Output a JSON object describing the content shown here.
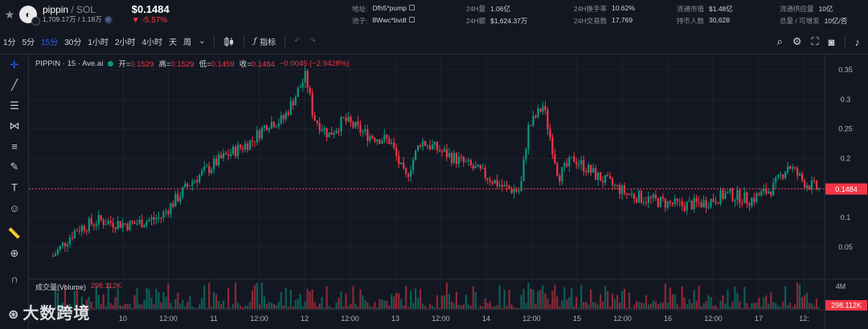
{
  "header": {
    "token_name": "pippin",
    "pair": " / SOL",
    "token_meta": "1,709.17万 / 1.18万",
    "price": "$0.1484",
    "change": "▼ -5.57%",
    "stats": [
      [
        {
          "k": "地址:",
          "v": "Dfh5*pump",
          "copy": true
        },
        {
          "k": "池子:",
          "v": "8Wwc*bvdt",
          "copy": true
        }
      ],
      [
        {
          "k": "24H量",
          "v": "1.06亿"
        },
        {
          "k": "24H额",
          "v": "$1,624.37万"
        }
      ],
      [
        {
          "k": "24H换手率",
          "v": "10.62%"
        },
        {
          "k": "24H交易数",
          "v": "17,769"
        }
      ],
      [
        {
          "k": "流通市值",
          "v": "$1.48亿"
        },
        {
          "k": "持币人数",
          "v": "30,628"
        }
      ],
      [
        {
          "k": "流通供应量",
          "v": "10亿"
        },
        {
          "k": "总量 / 可增发",
          "v": "10亿/否"
        }
      ]
    ]
  },
  "toolbar": {
    "timeframes": [
      "1分",
      "5分",
      "15分",
      "30分",
      "1小时",
      "2小时",
      "4小时",
      "天",
      "周"
    ],
    "active_timeframe": "15分",
    "indicators_label": "指标"
  },
  "legend": {
    "symbol": "PIPPIN · 15 · Ave.ai",
    "open_label": "开=",
    "open": "0.1529",
    "high_label": "高=",
    "high": "0.1529",
    "low_label": "低=",
    "low": "0.1459",
    "close_label": "收=",
    "close": "0.1484",
    "change": "−0.0045 (−2.9428%)"
  },
  "volume_legend": {
    "label": "成交量(Volume)",
    "value": "298.112K"
  },
  "watermark": "大数跨境",
  "colors": {
    "up": "#089981",
    "down": "#f23645",
    "accent": "#2962ff",
    "bg": "#131722"
  },
  "chart_data": {
    "type": "candlestick",
    "y_ticks": [
      "0.35",
      "0.3",
      "0.25",
      "0.2",
      "0.15",
      "0.1",
      "0.05"
    ],
    "y_tick_values": [
      0.35,
      0.3,
      0.25,
      0.2,
      0.15,
      0.1,
      0.05
    ],
    "ylim": [
      0.015,
      0.36
    ],
    "x_ticks": [
      "10",
      "12:00",
      "11",
      "12:00",
      "12",
      "12:00",
      "13",
      "12:00",
      "14",
      "12:00",
      "15",
      "12:00",
      "16",
      "12:00",
      "17",
      "12:"
    ],
    "price_label": "0.1484",
    "volume_axis_label": "4M",
    "volume_label": "298.112K",
    "price_path": [
      [
        0,
        0.035
      ],
      [
        3,
        0.08
      ],
      [
        6,
        0.095
      ],
      [
        10,
        0.088
      ],
      [
        14,
        0.1
      ],
      [
        18,
        0.16
      ],
      [
        22,
        0.2
      ],
      [
        26,
        0.23
      ],
      [
        28,
        0.26
      ],
      [
        30,
        0.265
      ],
      [
        33,
        0.34
      ],
      [
        34,
        0.27
      ],
      [
        36,
        0.24
      ],
      [
        38,
        0.265
      ],
      [
        41,
        0.24
      ],
      [
        44,
        0.23
      ],
      [
        46,
        0.165
      ],
      [
        48,
        0.23
      ],
      [
        51,
        0.21
      ],
      [
        54,
        0.19
      ],
      [
        56,
        0.175
      ],
      [
        59,
        0.15
      ],
      [
        61,
        0.145
      ],
      [
        62,
        0.25
      ],
      [
        64,
        0.29
      ],
      [
        66,
        0.17
      ],
      [
        68,
        0.2
      ],
      [
        71,
        0.17
      ],
      [
        75,
        0.14
      ],
      [
        78,
        0.13
      ],
      [
        82,
        0.12
      ],
      [
        85,
        0.125
      ],
      [
        88,
        0.14
      ],
      [
        91,
        0.13
      ],
      [
        94,
        0.15
      ],
      [
        96,
        0.19
      ],
      [
        98,
        0.16
      ],
      [
        100,
        0.148
      ]
    ],
    "x_span": 100
  }
}
